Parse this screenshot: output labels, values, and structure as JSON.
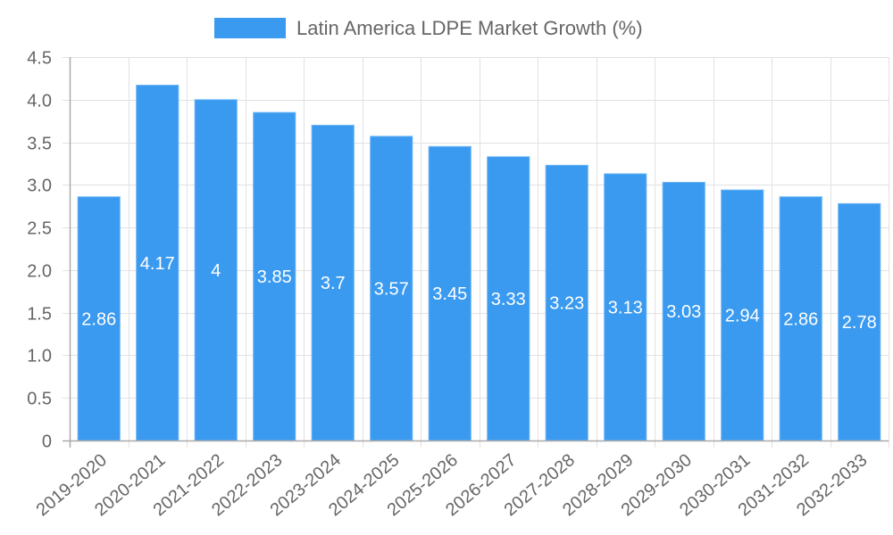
{
  "chart_data": {
    "type": "bar",
    "title": "",
    "legend": {
      "position": "top",
      "entries": [
        {
          "label": "Latin America LDPE Market Growth (%)",
          "color": "#3a9af0"
        }
      ]
    },
    "xlabel": "",
    "ylabel": "",
    "categories": [
      "2019-2020",
      "2020-2021",
      "2021-2022",
      "2022-2023",
      "2023-2024",
      "2024-2025",
      "2025-2026",
      "2026-2027",
      "2027-2028",
      "2028-2029",
      "2029-2030",
      "2030-2031",
      "2031-2032",
      "2032-2033"
    ],
    "series": [
      {
        "name": "Latin America LDPE Market Growth (%)",
        "values": [
          2.86,
          4.17,
          4,
          3.85,
          3.7,
          3.57,
          3.45,
          3.33,
          3.23,
          3.13,
          3.03,
          2.94,
          2.86,
          2.78
        ],
        "data_labels": [
          "2.86",
          "4.17",
          "4",
          "3.85",
          "3.7",
          "3.57",
          "3.45",
          "3.33",
          "3.23",
          "3.13",
          "3.03",
          "2.94",
          "2.86",
          "2.78"
        ],
        "color": "#3a9af0",
        "border_color": "#6fb6f5"
      }
    ],
    "ylim": [
      0,
      4.5
    ],
    "yticks": [
      0,
      0.5,
      1.0,
      1.5,
      2.0,
      2.5,
      3.0,
      3.5,
      4.0,
      4.5
    ],
    "ytick_labels": [
      "0",
      "0.5",
      "1.0",
      "1.5",
      "2.0",
      "2.5",
      "3.0",
      "3.5",
      "4.0",
      "4.5"
    ],
    "grid": true,
    "colors": {
      "text": "#666666",
      "grid": "#e1e1e1",
      "axis": "#aaaaaa",
      "data_label": "#ffffff"
    }
  }
}
